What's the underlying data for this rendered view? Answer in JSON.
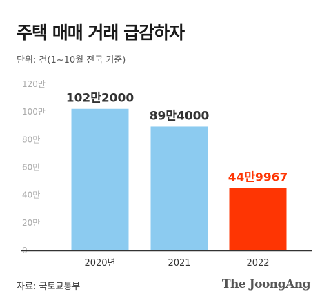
{
  "title": "주택 매매 거래 급감하자",
  "unit_note": "단위: 건(1~10월 전국 기준)",
  "source": "자료: 국토교통부",
  "brand": "The JoongAng",
  "colors": {
    "bar_default": "#8ccbf0",
    "bar_highlight": "#fe3503",
    "label_default": "#333333",
    "label_highlight": "#fe3503",
    "axis_tick": "#aaaaaa",
    "baseline": "#333333"
  },
  "chart_data": {
    "type": "bar",
    "title": "주택 매매 거래 급감하자",
    "xlabel": "",
    "ylabel": "",
    "ylim": [
      0,
      1200000
    ],
    "y_ticks": [
      {
        "value": 0,
        "label": "0"
      },
      {
        "value": 200000,
        "label": "20만"
      },
      {
        "value": 400000,
        "label": "40만"
      },
      {
        "value": 600000,
        "label": "60만"
      },
      {
        "value": 800000,
        "label": "80만"
      },
      {
        "value": 1000000,
        "label": "100만"
      },
      {
        "value": 1200000,
        "label": "120만"
      }
    ],
    "grid": false,
    "categories": [
      "2020년",
      "2021",
      "2022"
    ],
    "values": [
      1022000,
      894000,
      449967
    ],
    "data_labels": [
      "102만2000",
      "89만4000",
      "44만9967"
    ],
    "highlight_index": 2
  }
}
